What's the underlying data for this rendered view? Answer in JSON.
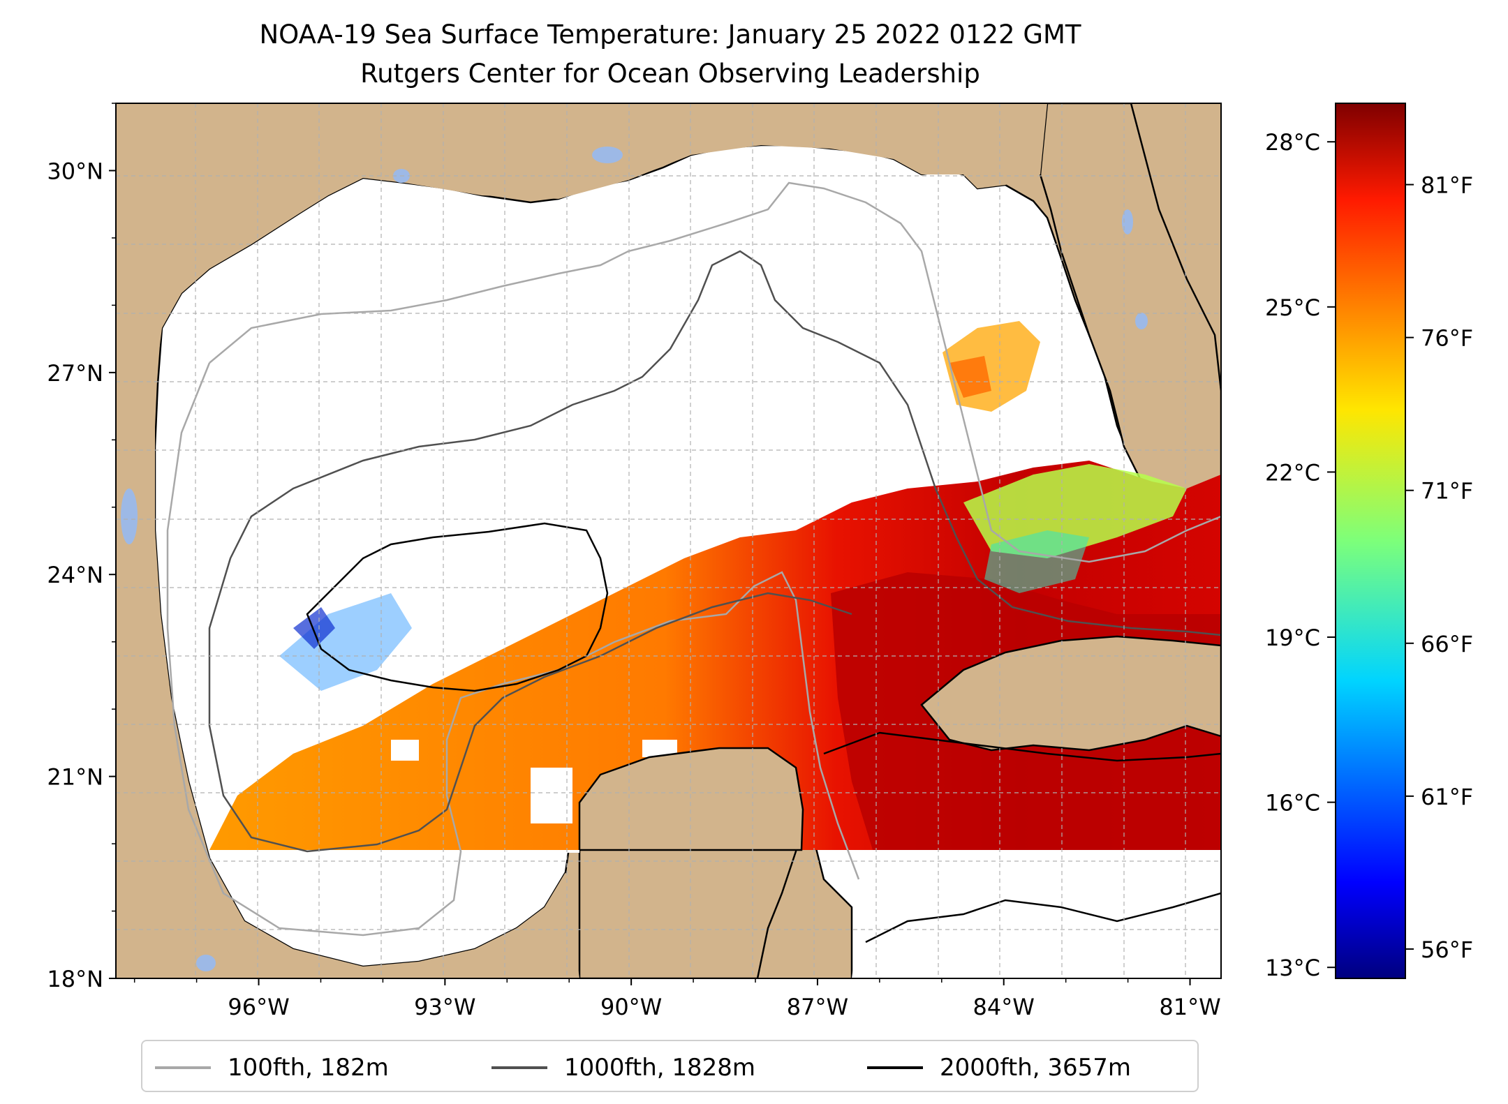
{
  "title": {
    "line1": "NOAA-19 Sea Surface Temperature: January 25 2022 0122 GMT",
    "line2": "Rutgers Center for Ocean Observing Leadership"
  },
  "map": {
    "lat_ticks": [
      {
        "value": 30,
        "label": "30°N"
      },
      {
        "value": 27,
        "label": "27°N"
      },
      {
        "value": 24,
        "label": "24°N"
      },
      {
        "value": 21,
        "label": "21°N"
      },
      {
        "value": 18,
        "label": "18°N"
      }
    ],
    "lon_ticks": [
      {
        "value": -96,
        "label": "96°W"
      },
      {
        "value": -93,
        "label": "93°W"
      },
      {
        "value": -90,
        "label": "90°W"
      },
      {
        "value": -87,
        "label": "87°W"
      },
      {
        "value": -84,
        "label": "84°W"
      },
      {
        "value": -81,
        "label": "81°W"
      }
    ],
    "extent": {
      "lon_min": -98.3,
      "lon_max": -80.5,
      "lat_min": 18.0,
      "lat_max": 31.0
    },
    "colors": {
      "land": "#d2b48c",
      "ocean_nodata": "#ffffff",
      "lakes": "#9db9e6",
      "grid": "#b0b0b0"
    }
  },
  "colorbar": {
    "colormap": "jet",
    "celsius_ticks": [
      {
        "value": 28,
        "label": "28°C"
      },
      {
        "value": 25,
        "label": "25°C"
      },
      {
        "value": 22,
        "label": "22°C"
      },
      {
        "value": 19,
        "label": "19°C"
      },
      {
        "value": 16,
        "label": "16°C"
      },
      {
        "value": 13,
        "label": "13°C"
      }
    ],
    "fahrenheit_ticks": [
      {
        "value": 81,
        "label": "81°F"
      },
      {
        "value": 76,
        "label": "76°F"
      },
      {
        "value": 71,
        "label": "71°F"
      },
      {
        "value": 66,
        "label": "66°F"
      },
      {
        "value": 61,
        "label": "61°F"
      },
      {
        "value": 56,
        "label": "56°F"
      }
    ]
  },
  "legend": {
    "items": [
      {
        "label": "100fth, 182m",
        "color": "#a8a8a8"
      },
      {
        "label": "1000fth, 1828m",
        "color": "#505050"
      },
      {
        "label": "2000fth, 3657m",
        "color": "#000000"
      }
    ]
  }
}
